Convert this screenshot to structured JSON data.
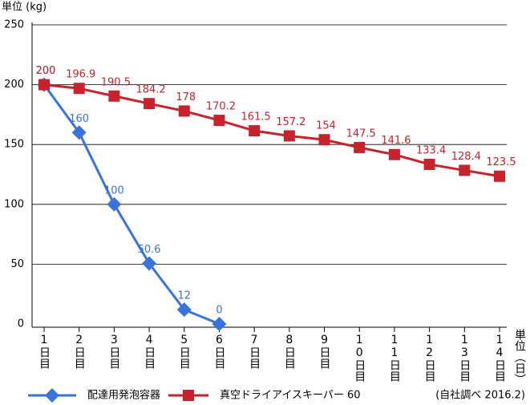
{
  "chart_data": {
    "type": "line",
    "y_label": "単位 (kg)",
    "x_label": "単位（日）",
    "annotation": "(自社調べ 2016.2)",
    "categories": [
      "1日目",
      "2日目",
      "3日目",
      "4日目",
      "5日目",
      "6日目",
      "7日目",
      "8日目",
      "9日目",
      "10日目",
      "11日目",
      "12日目",
      "13日目",
      "14日目"
    ],
    "series": [
      {
        "name": "配達用発泡容器",
        "color": "#3a73d9",
        "marker": "diamond",
        "values": [
          200,
          160,
          100,
          50.6,
          12,
          0,
          null,
          null,
          null,
          null,
          null,
          null,
          null,
          null
        ]
      },
      {
        "name": "真空ドライアイスキーパー 60",
        "color": "#c8232c",
        "marker": "square",
        "values": [
          200,
          196.9,
          190.5,
          184.2,
          178,
          170.2,
          161.5,
          157.2,
          154,
          147.5,
          141.6,
          133.4,
          128.4,
          123.5
        ]
      }
    ],
    "ylim": [
      0,
      250
    ],
    "yticks": [
      0,
      50,
      100,
      150,
      200,
      250
    ],
    "grid": true
  }
}
